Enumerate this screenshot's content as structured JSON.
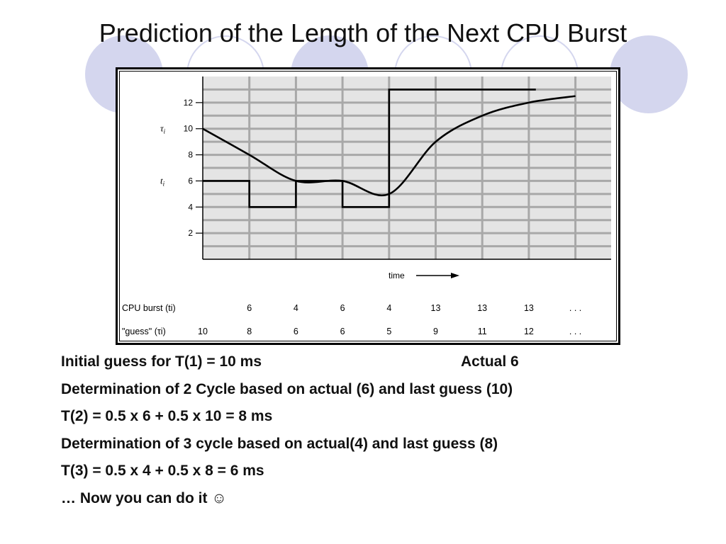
{
  "slide": {
    "title": "Prediction of the Length of the Next CPU Burst"
  },
  "colors": {
    "decor": "#d4d6ee",
    "grid_bg": "#e4e4e4",
    "grid_line": "#a8a8a8",
    "ink": "#000000"
  },
  "chart_data": {
    "type": "line",
    "xlabel": "time",
    "ylim": [
      0,
      14
    ],
    "y_ticks": [
      "2",
      "4",
      "6",
      "8",
      "10",
      "12"
    ],
    "y_tick_values": [
      2,
      4,
      6,
      8,
      10,
      12
    ],
    "series_labels": {
      "guess": "τi",
      "burst": "ti"
    },
    "series": [
      {
        "key": "burst",
        "style": "step",
        "values": [
          6,
          4,
          6,
          4,
          13,
          13,
          13,
          13
        ]
      },
      {
        "key": "guess",
        "style": "smooth",
        "values": [
          10,
          8,
          6,
          6,
          5,
          9,
          11,
          12,
          12.5
        ]
      }
    ],
    "table": {
      "rows": [
        {
          "label": "CPU burst (ti)",
          "values": [
            "6",
            "4",
            "6",
            "4",
            "13",
            "13",
            "13",
            ". . ."
          ]
        },
        {
          "label": "\"guess\" (τi)",
          "values": [
            "10",
            "8",
            "6",
            "6",
            "5",
            "9",
            "11",
            "12",
            ". . ."
          ]
        }
      ]
    }
  },
  "notes": [
    {
      "text": "Initial guess for  T(1) = 10 ms",
      "right": "Actual 6"
    },
    {
      "text": "Determination of 2 Cycle based on actual (6) and last guess (10)"
    },
    {
      "text": "T(2) = 0.5 x 6 + 0.5 x 10 = 8 ms"
    },
    {
      "text": "Determination of 3 cycle based on actual(4) and last guess (8)"
    },
    {
      "text": "T(3) = 0.5 x 4 + 0.5 x 8 = 6 ms"
    },
    {
      "text": "… Now you can do it ☺"
    }
  ]
}
